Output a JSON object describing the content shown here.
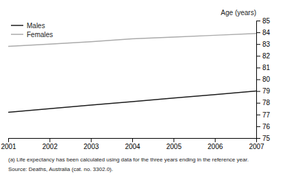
{
  "chart_data": {
    "type": "line",
    "x": [
      2001,
      2002,
      2003,
      2004,
      2005,
      2006,
      2007
    ],
    "series": [
      {
        "name": "Males",
        "color": "#1a1a1a",
        "values": [
          77.2,
          77.5,
          77.8,
          78.1,
          78.4,
          78.7,
          79.0
        ]
      },
      {
        "name": "Females",
        "color": "#aaaaaa",
        "values": [
          82.8,
          83.0,
          83.2,
          83.45,
          83.6,
          83.75,
          83.9
        ]
      }
    ],
    "xlim": [
      2001,
      2007
    ],
    "xticks": [
      2001,
      2002,
      2003,
      2004,
      2005,
      2006,
      2007
    ],
    "ylim": [
      75,
      85
    ],
    "yticks": [
      75,
      76,
      77,
      78,
      79,
      80,
      81,
      82,
      83,
      84,
      85
    ],
    "ylabel": "Age (years)",
    "annotations": [
      "(a) Life expectancy has been calculated using data for the three years ending in the reference year.",
      "Source: Deaths, Australia (cat. no. 3302.0)."
    ],
    "legend": "upper left",
    "grid": false
  }
}
